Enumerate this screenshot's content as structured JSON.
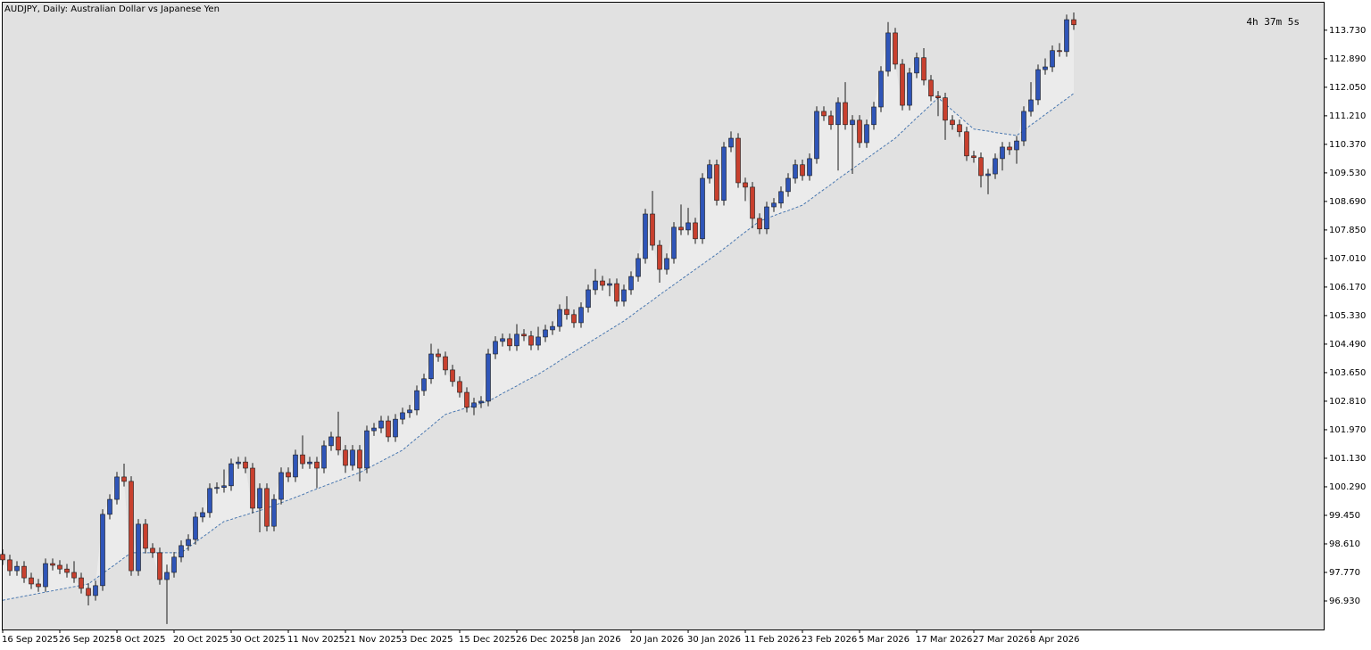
{
  "chart_data": {
    "type": "candlestick",
    "title": "AUDJPY, Daily:  Australian Dollar vs Japanese Yen",
    "timer": "4h 37m 5s",
    "up_color": "#2f55b8",
    "down_color": "#c8402e",
    "wick_color": "#1a1a1a",
    "categories": [
      "16 Sep 2025",
      null,
      null,
      null,
      null,
      null,
      null,
      null,
      "26 Sep 2025",
      null,
      null,
      null,
      null,
      null,
      null,
      null,
      "8 Oct 2025",
      null,
      null,
      null,
      null,
      null,
      null,
      null,
      "20 Oct 2025",
      null,
      null,
      null,
      null,
      null,
      null,
      null,
      "30 Oct 2025",
      null,
      null,
      null,
      null,
      null,
      null,
      null,
      "11 Nov 2025",
      null,
      null,
      null,
      null,
      null,
      null,
      null,
      "21 Nov 2025",
      null,
      null,
      null,
      null,
      null,
      null,
      null,
      "3 Dec 2025",
      null,
      null,
      null,
      null,
      null,
      null,
      null,
      "15 Dec 2025",
      null,
      null,
      null,
      null,
      null,
      null,
      null,
      "26 Dec 2025",
      null,
      null,
      null,
      null,
      null,
      null,
      null,
      "8 Jan 2026",
      null,
      null,
      null,
      null,
      null,
      null,
      null,
      "20 Jan 2026",
      null,
      null,
      null,
      null,
      null,
      null,
      null,
      "30 Jan 2026",
      null,
      null,
      null,
      null,
      null,
      null,
      null,
      "11 Feb 2026",
      null,
      null,
      null,
      null,
      null,
      null,
      null,
      "23 Feb 2026",
      null,
      null,
      null,
      null,
      null,
      null,
      null,
      "5 Mar 2026",
      null,
      null,
      null,
      null,
      null,
      null,
      null,
      "17 Mar 2026",
      null,
      null,
      null,
      null,
      null,
      null,
      null,
      "27 Mar 2026",
      null,
      null,
      null,
      null,
      null,
      null,
      null,
      "8 Apr 2026",
      null,
      null,
      null,
      null,
      null,
      null
    ],
    "open": [
      98.3,
      98.14,
      97.82,
      97.95,
      97.61,
      97.43,
      97.35,
      98.03,
      97.98,
      97.87,
      97.77,
      97.61,
      97.3,
      97.09,
      97.38,
      99.48,
      99.92,
      100.58,
      100.45,
      97.82,
      99.19,
      98.48,
      98.35,
      97.56,
      97.77,
      98.22,
      98.56,
      98.74,
      99.4,
      99.53,
      100.24,
      100.27,
      100.32,
      100.97,
      101.02,
      100.84,
      99.66,
      100.24,
      99.13,
      99.92,
      100.71,
      100.58,
      101.23,
      100.97,
      101.02,
      100.84,
      101.5,
      101.76,
      101.37,
      100.92,
      101.37,
      100.84,
      101.94,
      102.02,
      102.23,
      101.76,
      102.28,
      102.47,
      102.55,
      103.12,
      103.47,
      104.2,
      104.12,
      103.73,
      103.39,
      103.07,
      102.63,
      102.76,
      102.81,
      104.2,
      104.57,
      104.65,
      104.44,
      104.78,
      104.73,
      104.46,
      104.7,
      104.91,
      105.01,
      105.51,
      105.36,
      105.12,
      105.57,
      106.09,
      106.35,
      106.22,
      106.27,
      105.75,
      106.09,
      106.48,
      107.01,
      108.32,
      107.4,
      106.69,
      107.01,
      107.93,
      107.85,
      108.06,
      107.59,
      109.37,
      109.77,
      108.72,
      110.29,
      110.55,
      109.24,
      109.11,
      108.19,
      107.88,
      108.53,
      108.64,
      108.98,
      109.37,
      109.77,
      109.45,
      109.95,
      111.34,
      111.21,
      110.95,
      111.6,
      110.95,
      111.08,
      110.42,
      110.95,
      111.47,
      112.52,
      113.65,
      112.73,
      111.52,
      112.47,
      112.92,
      112.26,
      111.79,
      111.74,
      111.08,
      110.95,
      110.74,
      110.03,
      109.98,
      109.45,
      109.5,
      109.95,
      110.29,
      110.21,
      110.47,
      111.34,
      111.68,
      112.57,
      112.65,
      113.13,
      113.1,
      114.04
    ],
    "high": [
      98.45,
      98.29,
      98.1,
      98.1,
      97.76,
      97.58,
      98.18,
      98.18,
      98.13,
      98.02,
      98.1,
      97.76,
      97.45,
      97.53,
      99.63,
      100.07,
      100.73,
      100.97,
      100.6,
      99.34,
      99.34,
      98.63,
      98.5,
      98.0,
      98.37,
      98.71,
      98.89,
      99.55,
      99.68,
      100.39,
      100.42,
      100.8,
      101.12,
      101.17,
      101.17,
      100.99,
      100.39,
      100.39,
      100.07,
      100.86,
      100.86,
      101.38,
      101.8,
      101.17,
      101.17,
      101.65,
      101.91,
      102.5,
      101.52,
      101.52,
      101.52,
      102.09,
      102.17,
      102.38,
      102.38,
      102.43,
      102.62,
      102.7,
      103.27,
      103.62,
      104.5,
      104.35,
      104.27,
      103.88,
      103.54,
      103.22,
      102.91,
      102.96,
      104.35,
      104.72,
      104.8,
      104.8,
      105.08,
      104.93,
      104.88,
      105.0,
      105.06,
      105.16,
      105.66,
      105.9,
      105.51,
      105.72,
      106.24,
      106.7,
      106.5,
      106.42,
      106.42,
      106.24,
      106.63,
      107.16,
      108.47,
      109.0,
      107.55,
      107.16,
      108.08,
      108.6,
      108.5,
      108.21,
      109.52,
      109.92,
      109.92,
      110.44,
      110.75,
      110.7,
      109.39,
      109.26,
      108.34,
      108.68,
      108.79,
      109.13,
      109.52,
      109.92,
      109.92,
      110.1,
      111.49,
      111.49,
      111.36,
      111.75,
      112.2,
      111.23,
      111.23,
      111.1,
      111.62,
      112.67,
      113.97,
      113.8,
      112.88,
      112.62,
      113.07,
      113.2,
      112.41,
      111.94,
      111.89,
      111.23,
      111.1,
      110.89,
      110.18,
      110.13,
      109.65,
      110.1,
      110.44,
      110.44,
      110.62,
      111.49,
      112.2,
      112.72,
      112.9,
      113.28,
      113.35,
      114.19,
      114.25
    ],
    "low": [
      97.99,
      97.67,
      97.67,
      97.46,
      97.28,
      97.2,
      97.2,
      97.83,
      97.72,
      97.62,
      97.46,
      97.15,
      96.8,
      96.94,
      97.23,
      99.33,
      99.77,
      100.3,
      97.67,
      97.67,
      98.33,
      98.2,
      97.41,
      96.25,
      97.62,
      98.07,
      98.41,
      98.59,
      99.25,
      99.38,
      100.09,
      100.12,
      100.17,
      100.82,
      100.69,
      99.51,
      98.95,
      98.98,
      98.98,
      99.77,
      100.43,
      100.43,
      100.82,
      100.82,
      100.25,
      100.69,
      101.35,
      101.22,
      100.7,
      100.77,
      100.45,
      100.69,
      101.79,
      101.87,
      101.61,
      101.61,
      102.13,
      102.32,
      102.4,
      102.97,
      103.32,
      103.97,
      103.58,
      103.24,
      102.92,
      102.48,
      102.4,
      102.61,
      102.66,
      104.05,
      104.42,
      104.29,
      104.29,
      104.58,
      104.31,
      104.31,
      104.55,
      104.76,
      104.86,
      105.21,
      104.97,
      104.97,
      105.42,
      105.94,
      106.07,
      105.9,
      105.6,
      105.6,
      105.94,
      106.33,
      106.86,
      107.25,
      106.3,
      106.54,
      106.86,
      107.7,
      107.7,
      107.44,
      107.44,
      109.22,
      108.57,
      108.57,
      110.14,
      109.09,
      108.7,
      107.9,
      107.73,
      107.73,
      108.38,
      108.49,
      108.83,
      109.22,
      109.3,
      109.3,
      109.8,
      111.06,
      110.8,
      109.6,
      110.8,
      109.5,
      110.27,
      110.27,
      110.8,
      111.32,
      112.37,
      112.58,
      111.37,
      111.37,
      112.32,
      112.11,
      111.64,
      111.2,
      110.5,
      110.8,
      110.59,
      109.88,
      109.83,
      109.1,
      108.9,
      109.35,
      109.6,
      110.06,
      109.8,
      110.32,
      111.19,
      111.53,
      112.42,
      112.5,
      112.95,
      112.95,
      113.74
    ],
    "close": [
      98.14,
      97.82,
      97.95,
      97.61,
      97.43,
      97.35,
      98.03,
      97.98,
      97.87,
      97.77,
      97.61,
      97.3,
      97.09,
      97.38,
      99.48,
      99.92,
      100.58,
      100.45,
      97.82,
      99.19,
      98.48,
      98.35,
      97.56,
      97.77,
      98.22,
      98.56,
      98.74,
      99.4,
      99.53,
      100.24,
      100.27,
      100.32,
      100.97,
      101.02,
      100.84,
      99.66,
      100.24,
      99.13,
      99.92,
      100.71,
      100.58,
      101.23,
      100.97,
      101.02,
      100.84,
      101.5,
      101.76,
      101.37,
      100.92,
      101.37,
      100.84,
      101.94,
      102.02,
      102.23,
      101.76,
      102.28,
      102.47,
      102.55,
      103.12,
      103.47,
      104.2,
      104.12,
      103.73,
      103.39,
      103.07,
      102.63,
      102.76,
      102.81,
      104.2,
      104.57,
      104.65,
      104.44,
      104.78,
      104.73,
      104.46,
      104.7,
      104.91,
      105.01,
      105.51,
      105.36,
      105.12,
      105.57,
      106.09,
      106.35,
      106.22,
      106.27,
      105.75,
      106.09,
      106.48,
      107.01,
      108.32,
      107.4,
      106.69,
      107.01,
      107.93,
      107.85,
      108.06,
      107.59,
      109.37,
      109.77,
      108.72,
      110.29,
      110.55,
      109.24,
      109.11,
      108.19,
      107.88,
      108.53,
      108.64,
      108.98,
      109.37,
      109.77,
      109.45,
      109.95,
      111.34,
      111.21,
      110.95,
      111.6,
      110.95,
      111.08,
      110.42,
      110.95,
      111.47,
      112.52,
      113.65,
      112.73,
      111.52,
      112.47,
      112.92,
      112.26,
      111.79,
      111.74,
      111.08,
      110.95,
      110.74,
      110.03,
      109.98,
      109.45,
      109.5,
      109.95,
      110.29,
      110.21,
      110.47,
      111.34,
      111.68,
      112.57,
      112.65,
      113.13,
      113.1,
      114.04,
      113.89
    ],
    "overlay": {
      "color": "#4a78b0",
      "band_color": "#ebebeb",
      "values": [
        96.95,
        96.99,
        97.03,
        97.07,
        97.11,
        97.15,
        97.19,
        97.23,
        97.27,
        97.31,
        97.35,
        97.39,
        97.43,
        97.58,
        97.74,
        97.89,
        98.04,
        98.2,
        98.35,
        98.35,
        98.35,
        98.35,
        98.35,
        98.35,
        98.35,
        98.35,
        98.5,
        98.66,
        98.81,
        98.96,
        99.12,
        99.27,
        99.33,
        99.4,
        99.46,
        99.53,
        99.59,
        99.66,
        99.74,
        99.82,
        99.9,
        99.98,
        100.06,
        100.15,
        100.23,
        100.31,
        100.39,
        100.47,
        100.55,
        100.63,
        100.71,
        100.82,
        100.93,
        101.04,
        101.15,
        101.26,
        101.37,
        101.55,
        101.72,
        101.9,
        102.07,
        102.25,
        102.42,
        102.49,
        102.55,
        102.62,
        102.68,
        102.75,
        102.81,
        102.92,
        103.04,
        103.15,
        103.26,
        103.38,
        103.49,
        103.6,
        103.73,
        103.86,
        104.0,
        104.13,
        104.26,
        104.39,
        104.52,
        104.65,
        104.78,
        104.91,
        105.04,
        105.17,
        105.32,
        105.48,
        105.63,
        105.78,
        105.94,
        106.09,
        106.24,
        106.39,
        106.54,
        106.69,
        106.84,
        106.99,
        107.14,
        107.3,
        107.46,
        107.63,
        107.79,
        107.95,
        108.11,
        108.19,
        108.27,
        108.35,
        108.42,
        108.5,
        108.58,
        108.73,
        108.89,
        109.04,
        109.19,
        109.35,
        109.5,
        109.65,
        109.8,
        109.95,
        110.1,
        110.25,
        110.4,
        110.55,
        110.75,
        110.95,
        111.15,
        111.34,
        111.54,
        111.74,
        111.56,
        111.37,
        111.19,
        111.0,
        110.82,
        110.79,
        110.76,
        110.72,
        110.69,
        110.66,
        110.63,
        110.78,
        110.94,
        111.09,
        111.25,
        111.4,
        111.56,
        111.71,
        111.87
      ]
    },
    "ylim": [
      96.09,
      114.54
    ],
    "yticks": [
      {
        "value": 96.93,
        "label": "96.930"
      },
      {
        "value": 97.77,
        "label": "97.770"
      },
      {
        "value": 98.61,
        "label": "98.610"
      },
      {
        "value": 99.45,
        "label": "99.450"
      },
      {
        "value": 100.29,
        "label": "100.290"
      },
      {
        "value": 101.13,
        "label": "101.130"
      },
      {
        "value": 101.97,
        "label": "101.970"
      },
      {
        "value": 102.81,
        "label": "102.810"
      },
      {
        "value": 103.65,
        "label": "103.650"
      },
      {
        "value": 104.49,
        "label": "104.490"
      },
      {
        "value": 105.33,
        "label": "105.330"
      },
      {
        "value": 106.17,
        "label": "106.170"
      },
      {
        "value": 107.01,
        "label": "107.010"
      },
      {
        "value": 107.85,
        "label": "107.850"
      },
      {
        "value": 108.69,
        "label": "108.690"
      },
      {
        "value": 109.53,
        "label": "109.530"
      },
      {
        "value": 110.37,
        "label": "110.370"
      },
      {
        "value": 111.21,
        "label": "111.210"
      },
      {
        "value": 112.05,
        "label": "112.050"
      },
      {
        "value": 112.89,
        "label": "112.890"
      },
      {
        "value": 113.73,
        "label": "113.730"
      }
    ],
    "grid": false
  }
}
